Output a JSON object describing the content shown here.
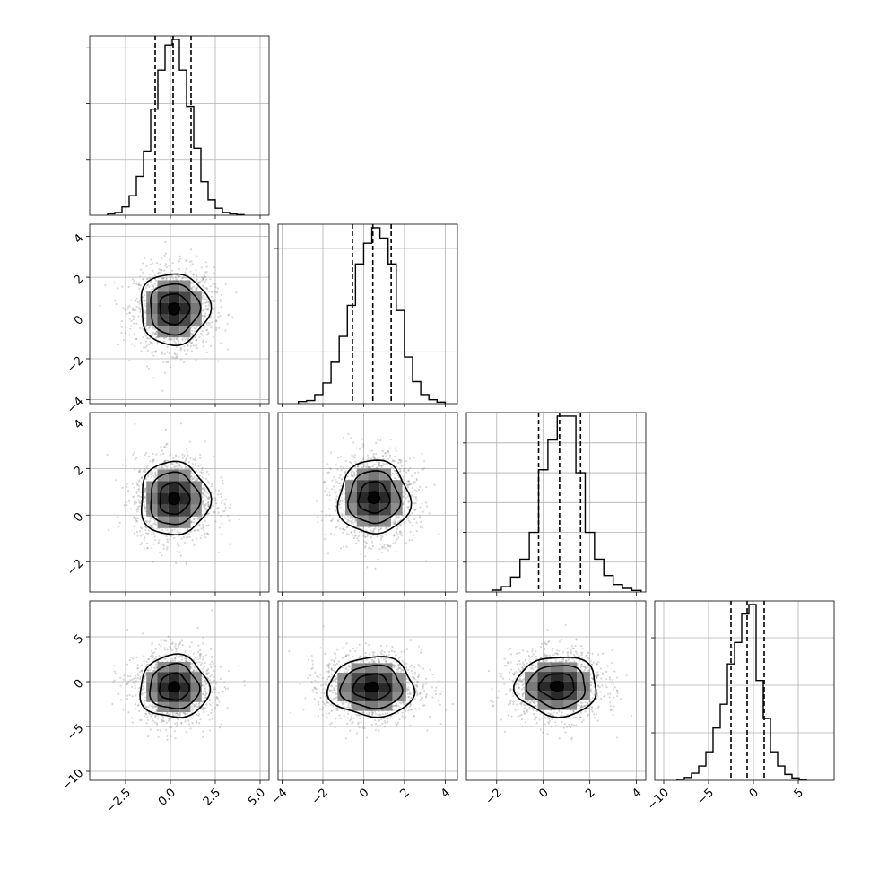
{
  "chart_data": {
    "type": "corner",
    "grid": true,
    "n_params": 4,
    "params": [
      {
        "range": [
          -4.5,
          5.5
        ],
        "ticks": [
          -2.5,
          0.0,
          2.5,
          5.0
        ],
        "tick_labels": [
          "−2.5",
          "0.0",
          "2.5",
          "5.0"
        ],
        "quantiles": [
          -0.85,
          0.15,
          1.15
        ],
        "hist": {
          "edges": [
            -3.5,
            -3.1,
            -2.7,
            -2.3,
            -1.9,
            -1.5,
            -1.1,
            -0.7,
            -0.3,
            0.1,
            0.5,
            0.9,
            1.3,
            1.7,
            2.1,
            2.5,
            2.9,
            3.3,
            3.7,
            4.1
          ],
          "counts": [
            5,
            10,
            30,
            70,
            140,
            230,
            380,
            520,
            610,
            630,
            520,
            390,
            240,
            120,
            55,
            25,
            10,
            5,
            2
          ]
        }
      },
      {
        "range": [
          -4.2,
          4.6
        ],
        "ticks": [
          -4,
          -2,
          0,
          2,
          4
        ],
        "tick_labels": [
          "−4",
          "−2",
          "0",
          "2",
          "4"
        ],
        "quantiles": [
          -0.55,
          0.45,
          1.35
        ],
        "hist": {
          "edges": [
            -3.2,
            -2.8,
            -2.4,
            -2.0,
            -1.6,
            -1.2,
            -0.8,
            -0.4,
            0.0,
            0.4,
            0.8,
            1.2,
            1.6,
            2.0,
            2.4,
            2.8,
            3.2,
            3.6,
            4.0
          ],
          "counts": [
            8,
            12,
            35,
            80,
            160,
            260,
            380,
            540,
            620,
            680,
            640,
            540,
            360,
            180,
            85,
            35,
            15,
            6
          ]
        }
      },
      {
        "range": [
          -3.3,
          4.4
        ],
        "ticks": [
          -2,
          0,
          2,
          4
        ],
        "tick_labels": [
          "−2",
          "0",
          "2",
          "4"
        ],
        "quantiles": [
          -0.2,
          0.7,
          1.6
        ],
        "hist": {
          "edges": [
            -2.2,
            -1.8,
            -1.4,
            -1.0,
            -0.6,
            -0.2,
            0.2,
            0.6,
            1.0,
            1.4,
            1.8,
            2.2,
            2.6,
            3.0,
            3.4,
            3.8,
            4.2
          ],
          "counts": [
            6,
            18,
            50,
            110,
            200,
            410,
            510,
            590,
            590,
            400,
            200,
            110,
            55,
            25,
            12,
            5
          ]
        }
      },
      {
        "range": [
          -11,
          9
        ],
        "ticks": [
          -10,
          -5,
          0,
          5
        ],
        "tick_labels": [
          "−10",
          "−5",
          "0",
          "5"
        ],
        "quantiles": [
          -2.5,
          -0.7,
          1.2
        ],
        "hist": {
          "edges": [
            -8.5,
            -7.7,
            -6.9,
            -6.1,
            -5.3,
            -4.5,
            -3.7,
            -2.9,
            -2.1,
            -1.3,
            -0.5,
            0.3,
            1.1,
            1.9,
            2.7,
            3.5,
            4.3,
            5.1,
            5.9
          ],
          "counts": [
            5,
            12,
            30,
            60,
            120,
            220,
            320,
            490,
            580,
            700,
            740,
            420,
            260,
            120,
            60,
            25,
            10,
            4
          ]
        }
      }
    ],
    "pairs": [
      {
        "row": 1,
        "col": 0,
        "center": [
          0.2,
          0.45
        ],
        "sigma": [
          1.1,
          1.0
        ]
      },
      {
        "row": 2,
        "col": 0,
        "center": [
          0.2,
          0.7
        ],
        "sigma": [
          1.1,
          0.9
        ]
      },
      {
        "row": 2,
        "col": 1,
        "center": [
          0.5,
          0.75
        ],
        "sigma": [
          1.0,
          0.9
        ]
      },
      {
        "row": 3,
        "col": 0,
        "center": [
          0.2,
          -0.6
        ],
        "sigma": [
          1.1,
          2.0
        ]
      },
      {
        "row": 3,
        "col": 1,
        "center": [
          0.4,
          -0.6
        ],
        "sigma": [
          1.2,
          1.9
        ]
      },
      {
        "row": 3,
        "col": 2,
        "center": [
          0.6,
          -0.5
        ],
        "sigma": [
          1.0,
          1.9
        ]
      }
    ]
  }
}
